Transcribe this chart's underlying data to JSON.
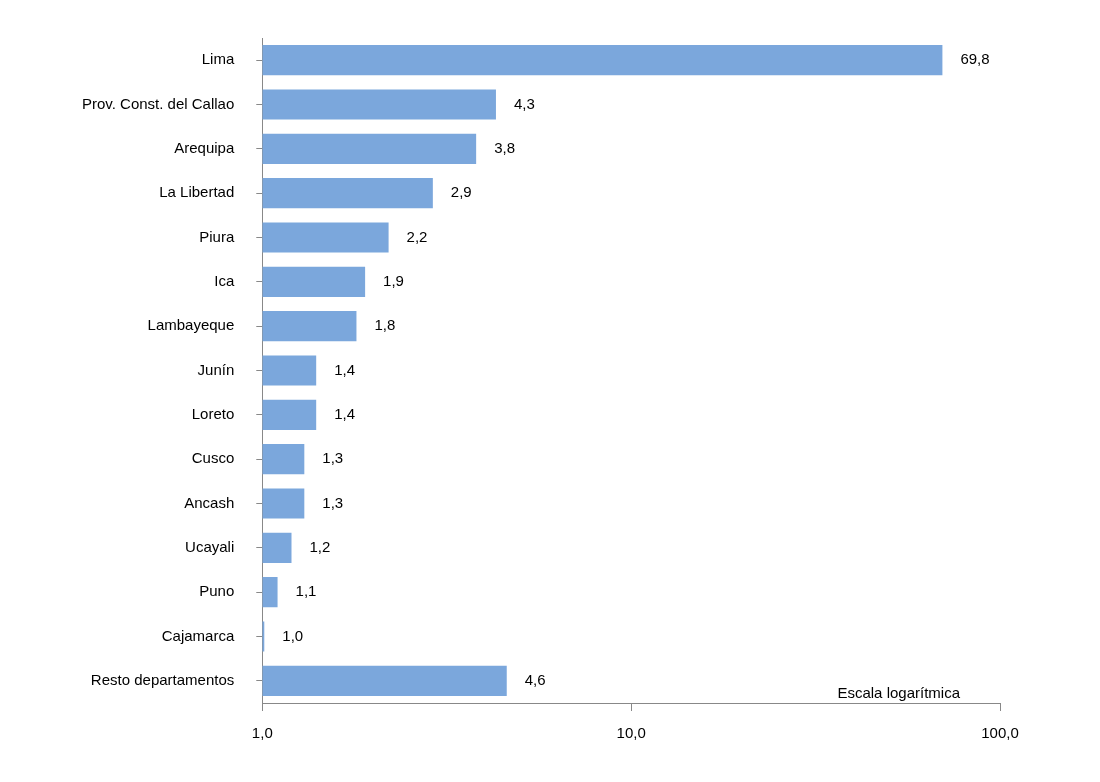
{
  "chart_data": {
    "type": "bar",
    "orientation": "horizontal",
    "log": "x",
    "categories": [
      "Lima",
      "Prov. Const. del Callao",
      "Arequipa",
      "La Libertad",
      "Piura",
      "Ica",
      "Lambayeque",
      "Junín",
      "Loreto",
      "Cusco",
      "Ancash",
      "Ucayali",
      "Puno",
      "Cajamarca",
      "Resto departamentos"
    ],
    "values": [
      69.8,
      4.3,
      3.8,
      2.9,
      2.2,
      1.9,
      1.8,
      1.4,
      1.4,
      1.3,
      1.3,
      1.2,
      1.1,
      1.0,
      4.6
    ],
    "value_labels": [
      "69,8",
      "4,3",
      "3,8",
      "2,9",
      "2,2",
      "1,9",
      "1,8",
      "1,4",
      "1,4",
      "1,3",
      "1,3",
      "1,2",
      "1,1",
      "1,0",
      "4,6"
    ],
    "color": "#7ba7dc",
    "xlim": [
      1,
      100
    ],
    "xticks": [
      {
        "value": 1,
        "label": "1,0"
      },
      {
        "value": 10,
        "label": "10,0"
      },
      {
        "value": 100,
        "label": "100,0"
      }
    ],
    "grid": false,
    "annotations": [
      "Escala logarítmica"
    ]
  }
}
